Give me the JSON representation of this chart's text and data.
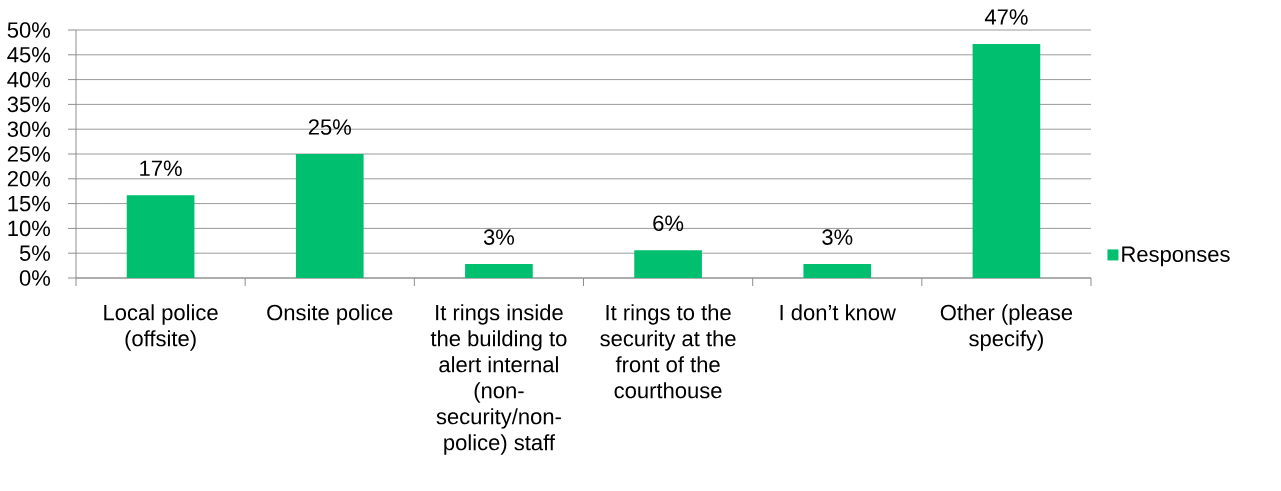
{
  "chart_data": {
    "type": "bar",
    "categories": [
      "Local police (offsite)",
      "Onsite police",
      "It rings inside the building to alert internal (non-security/non-police) staff",
      "It rings to the security at the front of the courthouse",
      "I don’t know",
      "Other (please specify)"
    ],
    "series": [
      {
        "name": "Responses",
        "color": "#00bf6f",
        "values": [
          16.7,
          25,
          2.8,
          5.6,
          2.8,
          47.2
        ],
        "value_labels": [
          "17%",
          "25%",
          "3%",
          "6%",
          "3%",
          "47%"
        ]
      }
    ],
    "ylim": [
      0,
      50
    ],
    "yticks": [
      {
        "value": 0,
        "label": "0%"
      },
      {
        "value": 5,
        "label": "5%"
      },
      {
        "value": 10,
        "label": "10%"
      },
      {
        "value": 15,
        "label": "15%"
      },
      {
        "value": 20,
        "label": "20%"
      },
      {
        "value": 25,
        "label": "25%"
      },
      {
        "value": 30,
        "label": "30%"
      },
      {
        "value": 35,
        "label": "35%"
      },
      {
        "value": 40,
        "label": "40%"
      },
      {
        "value": 45,
        "label": "45%"
      },
      {
        "value": 50,
        "label": "50%"
      }
    ],
    "grid": "y",
    "legend": "right"
  }
}
